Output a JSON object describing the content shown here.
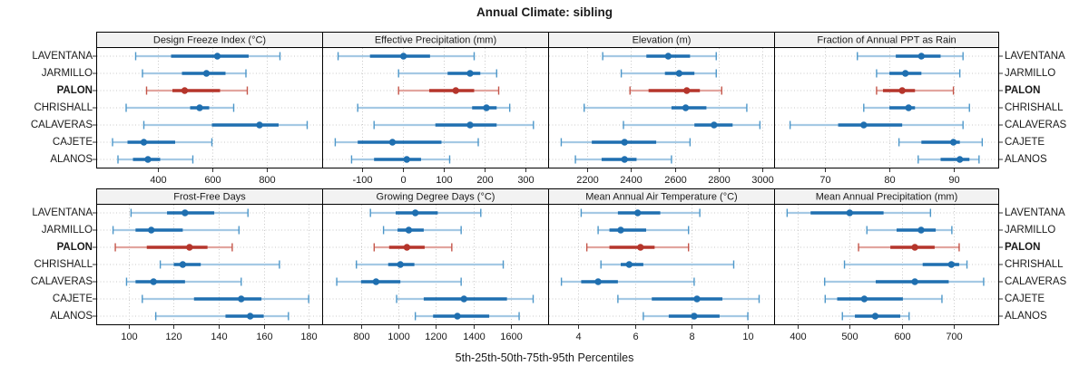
{
  "title": "Annual Climate: sibling",
  "footer": "5th-25th-50th-75th-95th Percentiles",
  "sites": [
    "LAVENTANA",
    "JARMILLO",
    "PALON",
    "CHRISHALL",
    "CALAVERAS",
    "CAJETE",
    "ALANOS"
  ],
  "highlight_site": "PALON",
  "colors": {
    "base": "#1F6FB0",
    "base_light": "#A5C9E4",
    "base_cap": "#4D97C9",
    "highlight": "#B5352B",
    "highlight_light": "#E2A59F",
    "highlight_cap": "#C45549",
    "grid": "#C9C9C9",
    "strip_bg": "#F2F2F2",
    "border": "#000000",
    "text": "#1a1a1a"
  },
  "chart_data": [
    {
      "type": "dot-whisker",
      "title": "Design Freeze Index (°C)",
      "row": 0,
      "col": 0,
      "xlim": [
        175,
        1005
      ],
      "ticks": [
        400,
        600,
        800
      ],
      "percentile_levels": [
        5,
        25,
        50,
        75,
        95
      ],
      "series": [
        {
          "name": "LAVENTANA",
          "values": [
            320,
            450,
            620,
            735,
            850
          ]
        },
        {
          "name": "JARMILLO",
          "values": [
            345,
            490,
            580,
            650,
            725
          ]
        },
        {
          "name": "PALON",
          "values": [
            360,
            455,
            500,
            630,
            730
          ]
        },
        {
          "name": "CHRISHALL",
          "values": [
            285,
            520,
            555,
            590,
            680
          ]
        },
        {
          "name": "CALAVERAS",
          "values": [
            350,
            600,
            775,
            845,
            950
          ]
        },
        {
          "name": "CAJETE",
          "values": [
            235,
            290,
            350,
            465,
            600
          ]
        },
        {
          "name": "ALANOS",
          "values": [
            255,
            310,
            365,
            410,
            530
          ]
        }
      ]
    },
    {
      "type": "dot-whisker",
      "title": "Effective Precipitation (mm)",
      "row": 0,
      "col": 1,
      "xlim": [
        -197,
        356
      ],
      "ticks": [
        -100,
        0,
        100,
        200,
        300
      ],
      "percentile_levels": [
        5,
        25,
        50,
        75,
        95
      ],
      "series": [
        {
          "name": "LAVENTANA",
          "values": [
            -158,
            -80,
            2,
            67,
            175
          ]
        },
        {
          "name": "JARMILLO",
          "values": [
            -10,
            110,
            165,
            190,
            230
          ]
        },
        {
          "name": "PALON",
          "values": [
            -10,
            65,
            130,
            175,
            235
          ]
        },
        {
          "name": "CHRISHALL",
          "values": [
            -110,
            170,
            205,
            230,
            262
          ]
        },
        {
          "name": "CALAVERAS",
          "values": [
            -70,
            80,
            165,
            230,
            320
          ]
        },
        {
          "name": "CAJETE",
          "values": [
            -165,
            -110,
            -25,
            95,
            185
          ]
        },
        {
          "name": "ALANOS",
          "values": [
            -125,
            -70,
            10,
            45,
            115
          ]
        }
      ]
    },
    {
      "type": "dot-whisker",
      "title": "Elevation (m)",
      "row": 0,
      "col": 2,
      "xlim": [
        2020,
        3055
      ],
      "ticks": [
        2200,
        2400,
        2600,
        2800,
        3000
      ],
      "percentile_levels": [
        5,
        25,
        50,
        75,
        95
      ],
      "series": [
        {
          "name": "LAVENTANA",
          "values": [
            2270,
            2470,
            2570,
            2670,
            2790
          ]
        },
        {
          "name": "JARMILLO",
          "values": [
            2355,
            2555,
            2620,
            2690,
            2790
          ]
        },
        {
          "name": "PALON",
          "values": [
            2395,
            2480,
            2655,
            2715,
            2815
          ]
        },
        {
          "name": "CHRISHALL",
          "values": [
            2185,
            2585,
            2650,
            2745,
            2930
          ]
        },
        {
          "name": "CALAVERAS",
          "values": [
            2365,
            2690,
            2780,
            2865,
            2990
          ]
        },
        {
          "name": "CAJETE",
          "values": [
            2080,
            2220,
            2370,
            2515,
            2670
          ]
        },
        {
          "name": "ALANOS",
          "values": [
            2145,
            2265,
            2370,
            2425,
            2585
          ]
        }
      ]
    },
    {
      "type": "dot-whisker",
      "title": "Fraction of Annual PPT as Rain",
      "row": 0,
      "col": 3,
      "xlim": [
        62,
        97
      ],
      "ticks": [
        70,
        80,
        90
      ],
      "percentile_levels": [
        5,
        25,
        50,
        75,
        95
      ],
      "series": [
        {
          "name": "LAVENTANA",
          "values": [
            75,
            81,
            85,
            88,
            91.5
          ]
        },
        {
          "name": "JARMILLO",
          "values": [
            78,
            80,
            82.5,
            85,
            91
          ]
        },
        {
          "name": "PALON",
          "values": [
            78,
            79,
            82,
            84,
            90
          ]
        },
        {
          "name": "CHRISHALL",
          "values": [
            76,
            80,
            83,
            84,
            92.5
          ]
        },
        {
          "name": "CALAVERAS",
          "values": [
            64.5,
            72,
            76,
            82,
            91.5
          ]
        },
        {
          "name": "CAJETE",
          "values": [
            81.5,
            85,
            90,
            91,
            94.5
          ]
        },
        {
          "name": "ALANOS",
          "values": [
            84.5,
            88,
            91,
            92.5,
            94
          ]
        }
      ]
    },
    {
      "type": "dot-whisker",
      "title": "Frost-Free Days",
      "row": 1,
      "col": 0,
      "xlim": [
        85.5,
        186
      ],
      "ticks": [
        100,
        120,
        140,
        160,
        180
      ],
      "percentile_levels": [
        5,
        25,
        50,
        75,
        95
      ],
      "series": [
        {
          "name": "LAVENTANA",
          "values": [
            101,
            117,
            125,
            138,
            153
          ]
        },
        {
          "name": "JARMILLO",
          "values": [
            93,
            103,
            110,
            124,
            149
          ]
        },
        {
          "name": "PALON",
          "values": [
            94,
            108,
            127,
            135,
            146
          ]
        },
        {
          "name": "CHRISHALL",
          "values": [
            114,
            120,
            124,
            132,
            167
          ]
        },
        {
          "name": "CALAVERAS",
          "values": [
            99,
            103,
            111,
            125,
            150
          ]
        },
        {
          "name": "CAJETE",
          "values": [
            106,
            129,
            150,
            159,
            180
          ]
        },
        {
          "name": "ALANOS",
          "values": [
            112,
            143,
            154,
            160,
            171
          ]
        }
      ]
    },
    {
      "type": "dot-whisker",
      "title": "Growing Degree Days (°C)",
      "row": 1,
      "col": 1,
      "xlim": [
        592,
        1800
      ],
      "ticks": [
        800,
        1000,
        1200,
        1400,
        1600
      ],
      "percentile_levels": [
        5,
        25,
        50,
        75,
        95
      ],
      "series": [
        {
          "name": "LAVENTANA",
          "values": [
            850,
            985,
            1090,
            1210,
            1440
          ]
        },
        {
          "name": "JARMILLO",
          "values": [
            920,
            995,
            1055,
            1135,
            1335
          ]
        },
        {
          "name": "PALON",
          "values": [
            870,
            950,
            1045,
            1140,
            1285
          ]
        },
        {
          "name": "CHRISHALL",
          "values": [
            775,
            945,
            1010,
            1085,
            1560
          ]
        },
        {
          "name": "CALAVERAS",
          "values": [
            670,
            800,
            880,
            1010,
            1335
          ]
        },
        {
          "name": "CAJETE",
          "values": [
            990,
            1135,
            1350,
            1580,
            1720
          ]
        },
        {
          "name": "ALANOS",
          "values": [
            1090,
            1185,
            1315,
            1485,
            1645
          ]
        }
      ]
    },
    {
      "type": "dot-whisker",
      "title": "Mean Annual Air Temperature (°C)",
      "row": 1,
      "col": 2,
      "xlim": [
        2.93,
        10.93
      ],
      "ticks": [
        4,
        6,
        8,
        10
      ],
      "percentile_levels": [
        5,
        25,
        50,
        75,
        95
      ],
      "series": [
        {
          "name": "LAVENTANA",
          "values": [
            4.1,
            5.4,
            6.1,
            6.9,
            8.3
          ]
        },
        {
          "name": "JARMILLO",
          "values": [
            4.7,
            5.1,
            5.5,
            6.4,
            7.9
          ]
        },
        {
          "name": "PALON",
          "values": [
            4.3,
            5.1,
            6.2,
            6.7,
            7.9
          ]
        },
        {
          "name": "CHRISHALL",
          "values": [
            4.8,
            5.5,
            5.8,
            6.3,
            9.5
          ]
        },
        {
          "name": "CALAVERAS",
          "values": [
            3.4,
            4.1,
            4.7,
            5.4,
            8.1
          ]
        },
        {
          "name": "CAJETE",
          "values": [
            5.4,
            6.6,
            8.2,
            9.1,
            10.4
          ]
        },
        {
          "name": "ALANOS",
          "values": [
            6.3,
            7.2,
            8.1,
            9.0,
            10.0
          ]
        }
      ]
    },
    {
      "type": "dot-whisker",
      "title": "Mean Annual Precipitation (mm)",
      "row": 1,
      "col": 3,
      "xlim": [
        355,
        785
      ],
      "ticks": [
        400,
        500,
        600,
        700
      ],
      "percentile_levels": [
        5,
        25,
        50,
        75,
        95
      ],
      "series": [
        {
          "name": "LAVENTANA",
          "values": [
            380,
            425,
            500,
            565,
            655
          ]
        },
        {
          "name": "JARMILLO",
          "values": [
            533,
            590,
            637,
            665,
            696
          ]
        },
        {
          "name": "PALON",
          "values": [
            517,
            578,
            625,
            663,
            710
          ]
        },
        {
          "name": "CHRISHALL",
          "values": [
            490,
            640,
            695,
            710,
            725
          ]
        },
        {
          "name": "CALAVERAS",
          "values": [
            452,
            550,
            625,
            690,
            757
          ]
        },
        {
          "name": "CAJETE",
          "values": [
            453,
            476,
            528,
            602,
            677
          ]
        },
        {
          "name": "ALANOS",
          "values": [
            486,
            510,
            549,
            597,
            614
          ]
        }
      ]
    }
  ]
}
